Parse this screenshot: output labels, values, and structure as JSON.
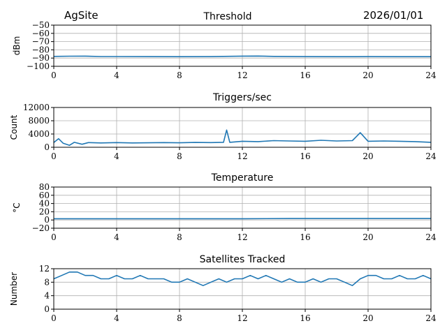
{
  "header": {
    "site": "AgSite",
    "date": "2026/01/01"
  },
  "colors": {
    "series": "#1f77b4",
    "grid": "#b0b0b0",
    "axes": "#000000"
  },
  "chart_data": [
    {
      "type": "line",
      "title": "Threshold",
      "xlabel": "",
      "ylabel": "dBm",
      "xlim": [
        0,
        24
      ],
      "ylim": [
        -100,
        -50
      ],
      "xticks": [
        "0",
        "4",
        "8",
        "12",
        "16",
        "20",
        "24"
      ],
      "yticks": [
        "−50",
        "−60",
        "−70",
        "−80",
        "−90",
        "−100"
      ],
      "grid": true,
      "series": [
        {
          "x": [
            0,
            1,
            2,
            3,
            4,
            6,
            8,
            10,
            12,
            13,
            14,
            16,
            18,
            20,
            22,
            24
          ],
          "y": [
            -88,
            -87.7,
            -87.6,
            -88.1,
            -88.1,
            -88.2,
            -88.3,
            -88.2,
            -87.6,
            -87.5,
            -88,
            -88.2,
            -88.3,
            -88.2,
            -88.3,
            -88.3
          ]
        }
      ]
    },
    {
      "type": "line",
      "title": "Triggers/sec",
      "xlabel": "",
      "ylabel": "Count",
      "xlim": [
        0,
        24
      ],
      "ylim": [
        0,
        12000
      ],
      "xticks": [
        "0",
        "4",
        "8",
        "12",
        "16",
        "20",
        "24"
      ],
      "yticks": [
        "12000",
        "8000",
        "4000",
        "0"
      ],
      "grid": true,
      "series": [
        {
          "x": [
            0,
            0.3,
            0.6,
            1,
            1.3,
            1.8,
            2.2,
            3,
            4,
            5,
            6,
            7,
            8,
            9,
            10,
            10.8,
            11,
            11.2,
            12,
            13,
            14,
            15,
            16,
            17,
            18,
            19,
            19.5,
            20,
            21,
            22,
            23,
            24
          ],
          "y": [
            1400,
            2600,
            1200,
            600,
            1500,
            900,
            1400,
            1300,
            1400,
            1300,
            1350,
            1400,
            1350,
            1450,
            1400,
            1500,
            5200,
            1500,
            1800,
            1700,
            2000,
            1900,
            1800,
            2100,
            1900,
            2000,
            4400,
            1800,
            1900,
            1800,
            1700,
            1500
          ]
        }
      ]
    },
    {
      "type": "line",
      "title": "Temperature",
      "xlabel": "",
      "ylabel": "°C",
      "xlim": [
        0,
        24
      ],
      "ylim": [
        -20,
        80
      ],
      "xticks": [
        "0",
        "4",
        "8",
        "12",
        "16",
        "20",
        "24"
      ],
      "yticks": [
        "80",
        "60",
        "40",
        "20",
        "0",
        "−20"
      ],
      "grid": true,
      "series": [
        {
          "x": [
            0,
            2,
            4,
            8,
            12,
            15,
            18,
            21,
            24
          ],
          "y": [
            3,
            3,
            3,
            3,
            3,
            3.5,
            3.5,
            3.5,
            3.5
          ]
        }
      ]
    },
    {
      "type": "line",
      "title": "Satellites Tracked",
      "xlabel": "",
      "ylabel": "Number",
      "xlim": [
        0,
        24
      ],
      "ylim": [
        0,
        12
      ],
      "xticks": [
        "0",
        "4",
        "8",
        "12",
        "16",
        "20",
        "24"
      ],
      "yticks": [
        "12",
        "8",
        "4",
        "0"
      ],
      "grid": true,
      "series": [
        {
          "x": [
            0,
            0.5,
            1,
            1.5,
            2,
            2.5,
            3,
            3.5,
            4,
            4.5,
            5,
            5.5,
            6,
            6.5,
            7,
            7.5,
            8,
            8.5,
            9,
            9.5,
            10,
            10.5,
            11,
            11.5,
            12,
            12.5,
            13,
            13.5,
            14,
            14.5,
            15,
            15.5,
            16,
            16.5,
            17,
            17.5,
            18,
            18.5,
            19,
            19.5,
            20,
            20.5,
            21,
            21.5,
            22,
            22.5,
            23,
            23.5,
            24
          ],
          "y": [
            9,
            10,
            11,
            11,
            10,
            10,
            9,
            9,
            10,
            9,
            9,
            10,
            9,
            9,
            9,
            8,
            8,
            9,
            8,
            7,
            8,
            9,
            8,
            9,
            9,
            10,
            9,
            10,
            9,
            8,
            9,
            8,
            8,
            9,
            8,
            9,
            9,
            8,
            7,
            9,
            10,
            10,
            9,
            9,
            10,
            9,
            9,
            10,
            9
          ]
        }
      ]
    }
  ]
}
